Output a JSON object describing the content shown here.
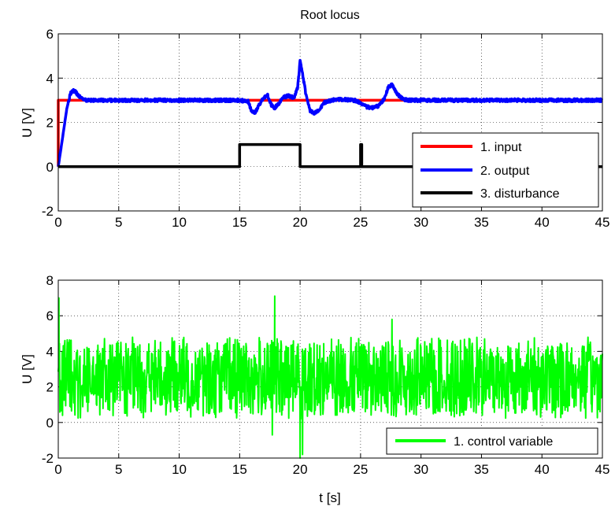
{
  "chart_data": [
    {
      "type": "line",
      "title": "Root locus",
      "xlabel": "",
      "ylabel": "U [V]",
      "xlim": [
        0,
        45
      ],
      "ylim": [
        -2,
        6
      ],
      "xticks": [
        "0",
        "5",
        "10",
        "15",
        "20",
        "25",
        "30",
        "35",
        "40",
        "45"
      ],
      "yticks": [
        "-2",
        "0",
        "2",
        "4",
        "6"
      ],
      "grid": true,
      "legend_position": "bottom-right",
      "series": [
        {
          "name": "1. input",
          "color": "#ff0000",
          "x": [
            0,
            0,
            45
          ],
          "y": [
            0,
            3,
            3
          ]
        },
        {
          "name": "2. output",
          "color": "#0000ff",
          "x": [
            0,
            0.3,
            0.7,
            1.0,
            1.3,
            1.7,
            2.2,
            3,
            15,
            15.7,
            16.0,
            16.3,
            16.6,
            17.0,
            17.3,
            17.6,
            17.9,
            18.3,
            18.7,
            19.1,
            19.5,
            19.8,
            20.0,
            20.2,
            20.5,
            20.8,
            21.2,
            21.6,
            22.0,
            23,
            24.5,
            25.0,
            25.5,
            26.0,
            26.5,
            27.0,
            27.3,
            27.6,
            28.0,
            28.5,
            29.0,
            30,
            45
          ],
          "y": [
            0,
            1.1,
            2.6,
            3.3,
            3.45,
            3.2,
            3.0,
            3.0,
            3.0,
            2.95,
            2.5,
            2.45,
            2.8,
            3.1,
            3.25,
            2.8,
            2.65,
            2.9,
            3.15,
            3.2,
            3.1,
            3.6,
            4.75,
            4.2,
            3.2,
            2.55,
            2.4,
            2.6,
            2.9,
            3.05,
            3.0,
            2.9,
            2.7,
            2.65,
            2.75,
            3.1,
            3.6,
            3.7,
            3.3,
            3.05,
            3.0,
            3.0,
            3.0
          ]
        },
        {
          "name": "3. disturbance",
          "color": "#000000",
          "x": [
            0,
            15,
            15,
            20,
            20,
            25,
            25,
            25.1,
            25.1,
            45
          ],
          "y": [
            0,
            0,
            1,
            1,
            0,
            0,
            1,
            1,
            0,
            0
          ]
        }
      ]
    },
    {
      "type": "line",
      "title": "",
      "xlabel": "t [s]",
      "ylabel": "U [V]",
      "xlim": [
        0,
        45
      ],
      "ylim": [
        -2,
        8
      ],
      "xticks": [
        "0",
        "5",
        "10",
        "15",
        "20",
        "25",
        "30",
        "35",
        "40",
        "45"
      ],
      "yticks": [
        "-2",
        "0",
        "2",
        "4",
        "6",
        "8"
      ],
      "grid": true,
      "legend_position": "bottom-right",
      "series": [
        {
          "name": "1. control variable",
          "color": "#00ff00",
          "noise_band": [
            0.2,
            4.8
          ],
          "spikes": [
            {
              "x": 0.05,
              "y": 7.0
            },
            {
              "x": 17.7,
              "y": -0.7
            },
            {
              "x": 17.9,
              "y": 7.1
            },
            {
              "x": 20.0,
              "y": -2.0
            },
            {
              "x": 20.2,
              "y": -1.8
            },
            {
              "x": 27.6,
              "y": 5.8
            }
          ]
        }
      ]
    }
  ]
}
